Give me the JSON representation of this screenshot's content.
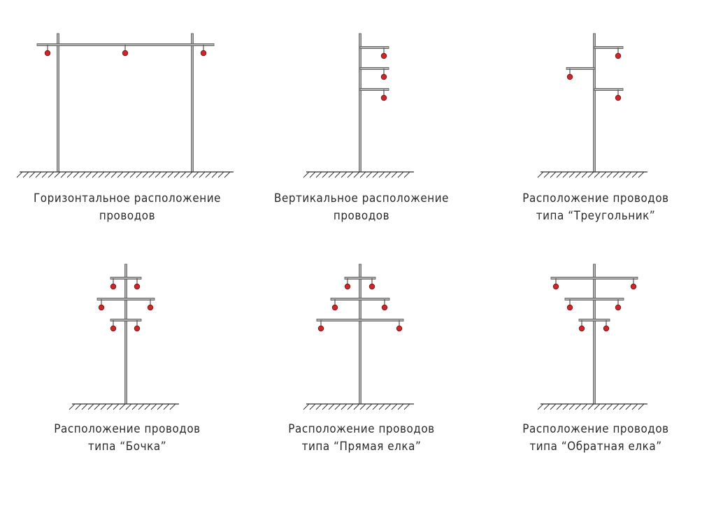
{
  "palette": {
    "pole": "#8a8a8a",
    "pole_edge": "#555555",
    "insulator": "#c8282c",
    "ground": "#333333",
    "text": "#2a2a2a"
  },
  "diagrams": [
    {
      "id": "horizontal",
      "caption": [
        "Горизонтальное расположение",
        "проводов"
      ]
    },
    {
      "id": "vertical",
      "caption": [
        "Вертикальное расположение",
        "проводов"
      ]
    },
    {
      "id": "triangle",
      "caption": [
        "Расположение проводов",
        "типа “Треугольник”"
      ]
    },
    {
      "id": "barrel",
      "caption": [
        "Расположение проводов",
        "типа “Бочка”"
      ]
    },
    {
      "id": "direct-tree",
      "caption": [
        "Расположение проводов",
        "типа “Прямая елка”"
      ]
    },
    {
      "id": "reverse-tree",
      "caption": [
        "Расположение проводов",
        "типа “Обратная елка”"
      ]
    }
  ]
}
